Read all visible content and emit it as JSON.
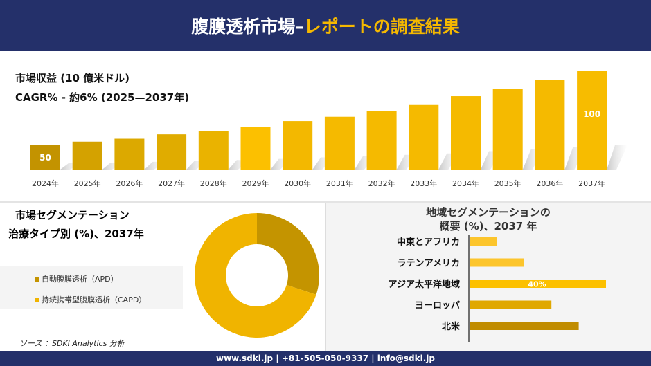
{
  "header": {
    "title_main": "腹膜透析市場–",
    "title_accent": "レポートの調査結果"
  },
  "revenue": {
    "title": "市場収益 (10 億米ドル)",
    "cagr": "CAGR% - 約6% (2025—2037年)"
  },
  "segment": {
    "title1": "市場セグメンテーション",
    "title2": "治療タイプ別 (%)、2037年"
  },
  "region": {
    "title1": "地域セグメンテーションの",
    "title2": "概要 (%)、2037 年"
  },
  "source": "ソース ：SDKI Analytics 分析",
  "footer": "www.sdki.jp | +81-505-050-9337 | info@sdki.jp",
  "colors": {
    "navy": "#24306a",
    "gold": "#f5b800",
    "dark_gold": "#c49400"
  },
  "chart_data": [
    {
      "type": "bar",
      "categories": [
        "2024年",
        "2025年",
        "2026年",
        "2027年",
        "2028年",
        "2029年",
        "2030年",
        "2031年",
        "2032年",
        "2033年",
        "2034年",
        "2035年",
        "2036年",
        "2037年"
      ],
      "values": [
        50,
        52,
        54,
        57,
        59,
        62,
        66,
        69,
        73,
        77,
        83,
        88,
        94,
        100
      ],
      "data_labels": {
        "2024年": "50",
        "2037年": "100"
      }
    },
    {
      "type": "pie",
      "donut": true,
      "labels": [
        "自動腹膜透析（APD）",
        "持続携帯型腹膜透析（CAPD）"
      ],
      "values": [
        30,
        70
      ],
      "colors": [
        "#c49400",
        "#f0b400"
      ]
    },
    {
      "type": "bar",
      "orientation": "horizontal",
      "categories": [
        "中東とアフリカ",
        "ラテンアメリカ",
        "アジア太平洋地域",
        "ヨーロッパ",
        "北米"
      ],
      "values": [
        8,
        16,
        40,
        24,
        32
      ],
      "colors": [
        "#fcc52c",
        "#fcc52c",
        "#fcc000",
        "#e0a800",
        "#c08c00"
      ],
      "data_labels": {
        "アジア太平洋地域": "40%"
      }
    }
  ]
}
